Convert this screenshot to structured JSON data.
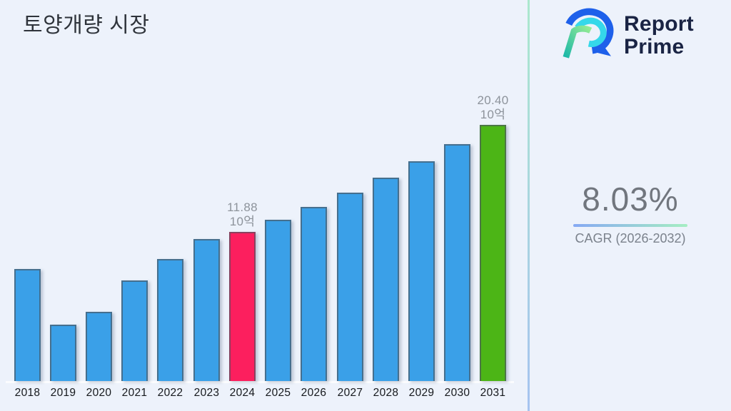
{
  "page": {
    "background": "#edf2fb"
  },
  "logo": {
    "line1": "Report",
    "line2": "Prime",
    "text_color": "#1a2444",
    "icon_blue": "#1e60ea",
    "icon_cyan": "#35d8ea",
    "icon_green_light": "#95ec93",
    "icon_green_teal": "#1cb8a8"
  },
  "divider": {
    "top_color": "#abe8cd",
    "bottom_color": "#a6c3f0"
  },
  "cagr": {
    "value": "8.03%",
    "label": "CAGR (2026-2032)",
    "underline_from": "#86a9f3",
    "underline_to": "#a5eec2"
  },
  "chart_data": {
    "type": "bar",
    "title": "토양개량 시장",
    "unit_label": "10억",
    "categories": [
      "2018",
      "2019",
      "2020",
      "2021",
      "2022",
      "2023",
      "2024",
      "2025",
      "2026",
      "2027",
      "2028",
      "2029",
      "2030",
      "2031"
    ],
    "values": [
      8.9,
      4.5,
      5.5,
      8.0,
      9.7,
      11.3,
      11.88,
      12.83,
      13.86,
      14.98,
      16.18,
      17.48,
      18.88,
      20.4
    ],
    "labeled_points": [
      {
        "category": "2024",
        "value": 11.88,
        "label_lines": [
          "11.88",
          "10억"
        ],
        "bar_color": "#fc1f5e"
      },
      {
        "category": "2031",
        "value": 20.4,
        "label_lines": [
          "20.40",
          "10억"
        ],
        "bar_color": "#4cb516"
      }
    ],
    "bar_color_default": "#3aa0e8",
    "annotation_text_color": "#8d939b",
    "axis_tick_color": "#16191d",
    "ylim": [
      0,
      22
    ],
    "grid": false,
    "legend": false,
    "xlabel": "",
    "ylabel": ""
  }
}
